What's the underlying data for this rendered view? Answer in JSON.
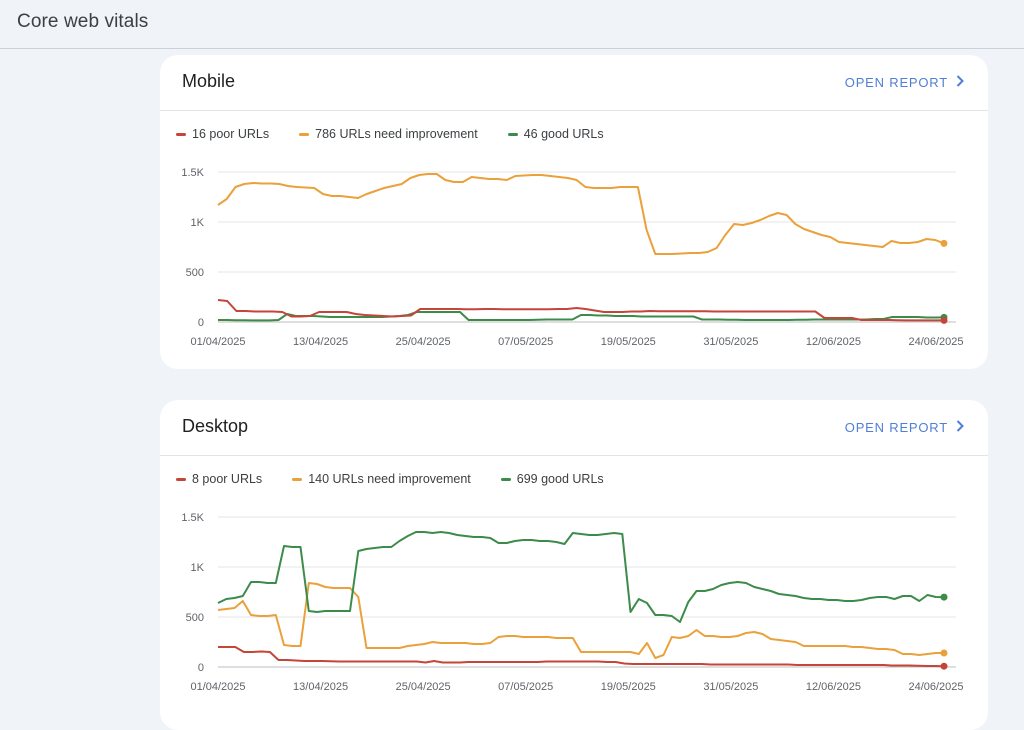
{
  "page": {
    "title": "Core web vitals"
  },
  "colors": {
    "poor": "#c5453a",
    "needs": "#eba13b",
    "good": "#3d8b4a",
    "link": "#4f7fd6"
  },
  "cards": [
    {
      "id": "mobile",
      "title": "Mobile",
      "open_report": "OPEN REPORT",
      "legend": {
        "poor": "16 poor URLs",
        "needs": "786 URLs need improvement",
        "good": "46 good URLs"
      }
    },
    {
      "id": "desktop",
      "title": "Desktop",
      "open_report": "OPEN REPORT",
      "legend": {
        "poor": "8 poor URLs",
        "needs": "140 URLs need improvement",
        "good": "699 good URLs"
      }
    }
  ],
  "chart_data": [
    {
      "type": "line",
      "title": "Mobile",
      "x_ticks": [
        "01/04/2025",
        "13/04/2025",
        "25/04/2025",
        "07/05/2025",
        "19/05/2025",
        "31/05/2025",
        "12/06/2025",
        "24/06/2025"
      ],
      "y_ticks": [
        "0",
        "500",
        "1K",
        "1.5K"
      ],
      "ylim": [
        0,
        1500
      ],
      "grid": true,
      "legend_position": "top-left",
      "series": [
        {
          "name": "16 poor URLs",
          "key": "poor",
          "values": [
            220,
            210,
            110,
            110,
            105,
            105,
            105,
            100,
            55,
            55,
            60,
            100,
            100,
            100,
            100,
            80,
            70,
            65,
            60,
            55,
            60,
            65,
            130,
            130,
            130,
            130,
            130,
            128,
            128,
            130,
            130,
            128,
            128,
            128,
            128,
            128,
            128,
            130,
            130,
            140,
            130,
            115,
            100,
            100,
            100,
            105,
            105,
            110,
            108,
            108,
            108,
            108,
            108,
            108,
            105,
            105,
            105,
            105,
            105,
            105,
            105,
            105,
            105,
            105,
            105,
            105,
            40,
            40,
            40,
            40,
            20,
            20,
            20,
            20,
            18,
            16,
            16,
            16,
            16,
            16
          ]
        },
        {
          "name": "786 URLs need improvement",
          "key": "needs",
          "values": [
            1170,
            1230,
            1350,
            1380,
            1390,
            1385,
            1385,
            1380,
            1360,
            1350,
            1345,
            1340,
            1280,
            1260,
            1260,
            1250,
            1240,
            1280,
            1310,
            1340,
            1360,
            1380,
            1440,
            1470,
            1480,
            1480,
            1420,
            1400,
            1400,
            1450,
            1440,
            1430,
            1430,
            1420,
            1460,
            1465,
            1470,
            1470,
            1460,
            1450,
            1440,
            1420,
            1350,
            1340,
            1340,
            1340,
            1350,
            1350,
            1350,
            920,
            680,
            680,
            680,
            685,
            690,
            690,
            700,
            740,
            870,
            980,
            970,
            990,
            1020,
            1060,
            1090,
            1070,
            980,
            930,
            900,
            870,
            850,
            800,
            790,
            780,
            770,
            760,
            750,
            810,
            790,
            790,
            800,
            830,
            820,
            786
          ]
        },
        {
          "name": "46 good URLs",
          "key": "good",
          "values": [
            20,
            20,
            18,
            18,
            16,
            16,
            16,
            20,
            80,
            60,
            60,
            60,
            55,
            50,
            50,
            50,
            50,
            50,
            50,
            50,
            55,
            60,
            70,
            100,
            100,
            100,
            100,
            100,
            100,
            20,
            20,
            20,
            20,
            20,
            20,
            20,
            20,
            22,
            25,
            25,
            25,
            25,
            70,
            70,
            65,
            65,
            60,
            60,
            60,
            55,
            55,
            55,
            55,
            55,
            55,
            55,
            25,
            25,
            25,
            22,
            22,
            20,
            20,
            20,
            20,
            20,
            20,
            22,
            22,
            25,
            25,
            25,
            25,
            25,
            25,
            25,
            30,
            30,
            50,
            50,
            50,
            50,
            45,
            45,
            46
          ]
        }
      ]
    },
    {
      "type": "line",
      "title": "Desktop",
      "x_ticks": [
        "01/04/2025",
        "13/04/2025",
        "25/04/2025",
        "07/05/2025",
        "19/05/2025",
        "31/05/2025",
        "12/06/2025",
        "24/06/2025"
      ],
      "y_ticks": [
        "0",
        "500",
        "1K",
        "1.5K"
      ],
      "ylim": [
        0,
        1500
      ],
      "grid": true,
      "legend_position": "top-left",
      "series": [
        {
          "name": "8 poor URLs",
          "key": "poor",
          "values": [
            200,
            200,
            200,
            150,
            150,
            155,
            150,
            70,
            70,
            65,
            60,
            60,
            60,
            58,
            55,
            55,
            55,
            55,
            55,
            55,
            55,
            55,
            55,
            55,
            45,
            60,
            45,
            45,
            45,
            50,
            50,
            50,
            50,
            50,
            50,
            50,
            50,
            50,
            55,
            55,
            55,
            55,
            55,
            55,
            55,
            50,
            50,
            35,
            30,
            30,
            30,
            30,
            30,
            30,
            30,
            30,
            30,
            25,
            25,
            25,
            25,
            25,
            25,
            25,
            25,
            25,
            25,
            20,
            20,
            20,
            20,
            20,
            20,
            20,
            20,
            20,
            20,
            20,
            15,
            15,
            15,
            12,
            10,
            10,
            8
          ]
        },
        {
          "name": "140 URLs need improvement",
          "key": "needs",
          "values": [
            570,
            580,
            590,
            660,
            520,
            510,
            510,
            520,
            220,
            210,
            210,
            840,
            830,
            800,
            790,
            790,
            790,
            700,
            190,
            190,
            190,
            190,
            190,
            210,
            220,
            230,
            250,
            240,
            240,
            240,
            240,
            230,
            230,
            240,
            300,
            310,
            310,
            300,
            300,
            300,
            300,
            290,
            290,
            290,
            150,
            150,
            150,
            150,
            150,
            150,
            150,
            130,
            240,
            90,
            120,
            300,
            290,
            310,
            370,
            310,
            310,
            300,
            300,
            310,
            340,
            350,
            330,
            280,
            270,
            260,
            250,
            210,
            210,
            210,
            210,
            210,
            210,
            200,
            200,
            190,
            180,
            180,
            170,
            130,
            130,
            120,
            130,
            140,
            140
          ]
        },
        {
          "name": "699 good URLs",
          "key": "good",
          "values": [
            640,
            680,
            690,
            710,
            850,
            850,
            840,
            840,
            1210,
            1200,
            1200,
            560,
            550,
            560,
            560,
            560,
            560,
            1160,
            1180,
            1190,
            1200,
            1200,
            1260,
            1310,
            1350,
            1350,
            1340,
            1350,
            1340,
            1320,
            1310,
            1300,
            1300,
            1290,
            1240,
            1240,
            1260,
            1270,
            1270,
            1260,
            1260,
            1250,
            1230,
            1340,
            1330,
            1320,
            1320,
            1330,
            1340,
            1330,
            550,
            680,
            640,
            520,
            520,
            510,
            450,
            650,
            760,
            760,
            780,
            820,
            840,
            850,
            840,
            800,
            780,
            760,
            730,
            720,
            710,
            690,
            680,
            680,
            670,
            670,
            660,
            660,
            670,
            690,
            700,
            700,
            680,
            710,
            710,
            660,
            720,
            700,
            699
          ]
        }
      ]
    }
  ]
}
